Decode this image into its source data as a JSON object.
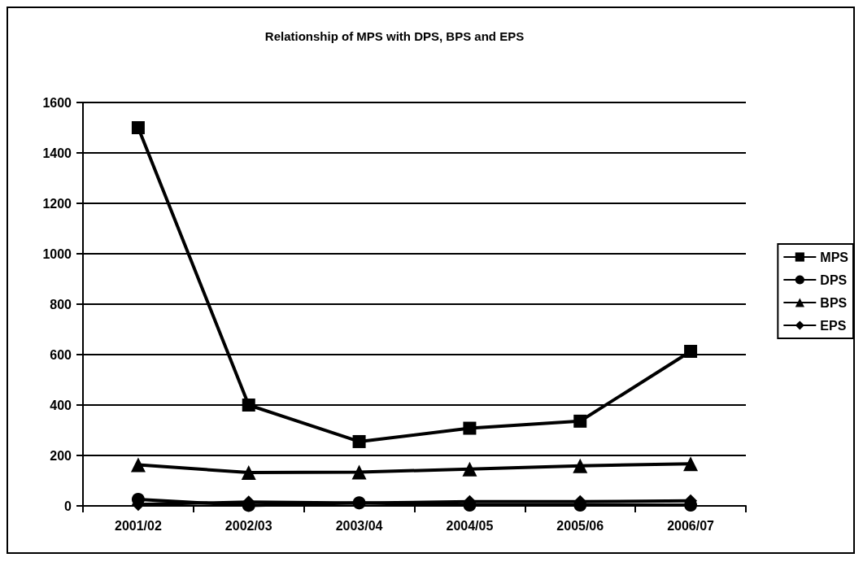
{
  "chart_data": {
    "type": "line",
    "title": "Relationship of MPS with DPS, BPS and EPS",
    "categories": [
      "2001/02",
      "2002/03",
      "2003/04",
      "2004/05",
      "2005/06",
      "2006/07"
    ],
    "series": [
      {
        "name": "MPS",
        "color": "#000000",
        "marker": "square",
        "values": [
          1500,
          400,
          255,
          308,
          336,
          613
        ]
      },
      {
        "name": "DPS",
        "color": "#000000",
        "marker": "circle",
        "values": [
          26,
          2,
          12,
          3,
          3,
          3
        ]
      },
      {
        "name": "BPS",
        "color": "#000000",
        "marker": "triangle",
        "values": [
          163,
          132,
          134,
          146,
          159,
          167
        ]
      },
      {
        "name": "EPS",
        "color": "#000000",
        "marker": "diamond",
        "values": [
          6,
          15,
          11,
          17,
          17,
          20
        ]
      }
    ],
    "ylim": [
      0,
      1600
    ],
    "yticks": [
      0,
      200,
      400,
      600,
      800,
      1000,
      1200,
      1400,
      1600
    ],
    "grid": "y",
    "legend": "right",
    "line_style": "solid"
  }
}
